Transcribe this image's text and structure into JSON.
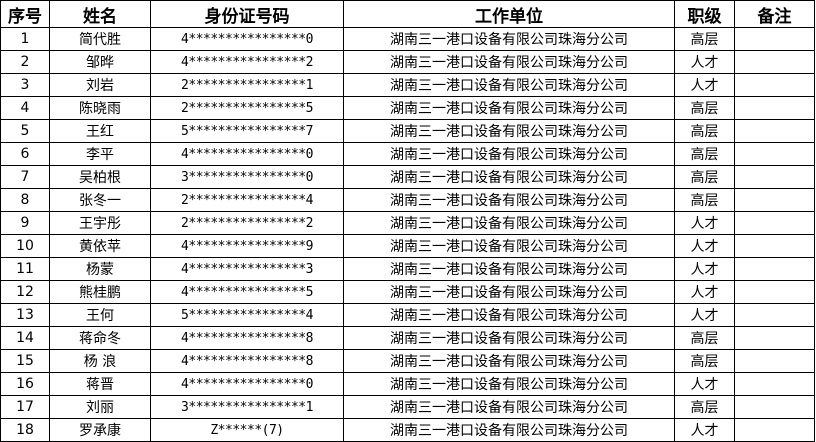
{
  "headers": [
    "序号",
    "姓名",
    "身份证号码",
    "工作单位",
    "职级",
    "备注"
  ],
  "rows": [
    {
      "no": "1",
      "name": "简代胜",
      "id": "4****************0",
      "unit": "湖南三一港口设备有限公司珠海分公司",
      "level": "高层",
      "note": ""
    },
    {
      "no": "2",
      "name": "邹晔",
      "id": "4****************2",
      "unit": "湖南三一港口设备有限公司珠海分公司",
      "level": "人才",
      "note": ""
    },
    {
      "no": "3",
      "name": "刘岩",
      "id": "2****************1",
      "unit": "湖南三一港口设备有限公司珠海分公司",
      "level": "人才",
      "note": ""
    },
    {
      "no": "4",
      "name": "陈晓雨",
      "id": "2****************5",
      "unit": "湖南三一港口设备有限公司珠海分公司",
      "level": "高层",
      "note": ""
    },
    {
      "no": "5",
      "name": "王红",
      "id": "5****************7",
      "unit": "湖南三一港口设备有限公司珠海分公司",
      "level": "高层",
      "note": ""
    },
    {
      "no": "6",
      "name": "李平",
      "id": "4****************0",
      "unit": "湖南三一港口设备有限公司珠海分公司",
      "level": "高层",
      "note": ""
    },
    {
      "no": "7",
      "name": "吴柏根",
      "id": "3****************0",
      "unit": "湖南三一港口设备有限公司珠海分公司",
      "level": "高层",
      "note": ""
    },
    {
      "no": "8",
      "name": "张冬一",
      "id": "2****************4",
      "unit": "湖南三一港口设备有限公司珠海分公司",
      "level": "高层",
      "note": ""
    },
    {
      "no": "9",
      "name": "王宇彤",
      "id": "2****************2",
      "unit": "湖南三一港口设备有限公司珠海分公司",
      "level": "人才",
      "note": ""
    },
    {
      "no": "10",
      "name": "黄依苹",
      "id": "4****************9",
      "unit": "湖南三一港口设备有限公司珠海分公司",
      "level": "人才",
      "note": ""
    },
    {
      "no": "11",
      "name": "杨蒙",
      "id": "4****************3",
      "unit": "湖南三一港口设备有限公司珠海分公司",
      "level": "人才",
      "note": ""
    },
    {
      "no": "12",
      "name": "熊桂鹏",
      "id": "4****************5",
      "unit": "湖南三一港口设备有限公司珠海分公司",
      "level": "人才",
      "note": ""
    },
    {
      "no": "13",
      "name": "王何",
      "id": "5****************4",
      "unit": "湖南三一港口设备有限公司珠海分公司",
      "level": "人才",
      "note": ""
    },
    {
      "no": "14",
      "name": "蒋命冬",
      "id": "4****************8",
      "unit": "湖南三一港口设备有限公司珠海分公司",
      "level": "高层",
      "note": ""
    },
    {
      "no": "15",
      "name": "杨 浪",
      "id": "4****************8",
      "unit": "湖南三一港口设备有限公司珠海分公司",
      "level": "高层",
      "note": ""
    },
    {
      "no": "16",
      "name": "蒋晋",
      "id": "4****************0",
      "unit": "湖南三一港口设备有限公司珠海分公司",
      "level": "人才",
      "note": ""
    },
    {
      "no": "17",
      "name": "刘丽",
      "id": "3****************1",
      "unit": "湖南三一港口设备有限公司珠海分公司",
      "level": "高层",
      "note": ""
    },
    {
      "no": "18",
      "name": "罗承康",
      "id": "Z******(7)",
      "unit": "湖南三一港口设备有限公司珠海分公司",
      "level": "人才",
      "note": ""
    }
  ]
}
